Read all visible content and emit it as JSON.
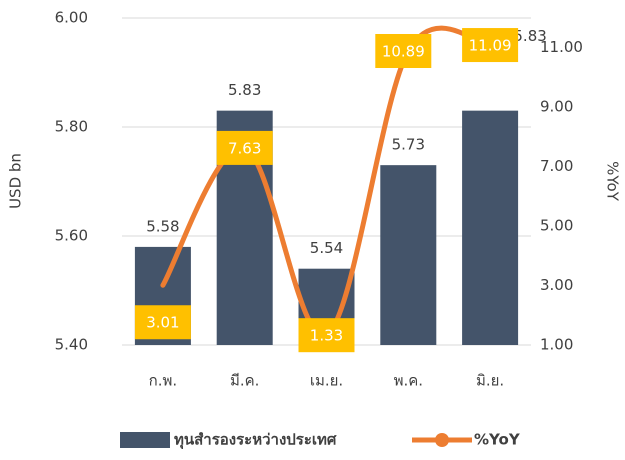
{
  "chart_data": {
    "type": "bar_line",
    "categories": [
      "ก.พ.",
      "มี.ค.",
      "เม.ย.",
      "พ.ค.",
      "มิ.ย."
    ],
    "series": [
      {
        "name": "ทุนสำรองระหว่างประเทศ",
        "type": "bar",
        "color": "#44546a",
        "values": [
          5.58,
          5.83,
          5.54,
          5.73,
          5.83
        ]
      },
      {
        "name": "%YoY",
        "type": "line",
        "axis": "y2",
        "color": "#ed7d31",
        "values": [
          3.01,
          7.63,
          1.33,
          10.89,
          11.09
        ]
      }
    ],
    "ylabel": "USD bn",
    "y2label": "%YoY",
    "ylim": [
      5.4,
      6.0
    ],
    "yticks": [
      {
        "value": 5.4,
        "label": "5.40"
      },
      {
        "value": 5.6,
        "label": "5.60"
      },
      {
        "value": 5.8,
        "label": "5.80"
      },
      {
        "value": 6.0,
        "label": "6.00"
      }
    ],
    "y2lim": [
      1,
      12
    ],
    "y2ticks": [
      {
        "value": 1,
        "label": "1.00"
      },
      {
        "value": 3,
        "label": "3.00"
      },
      {
        "value": 5,
        "label": "5.00"
      },
      {
        "value": 7,
        "label": "7.00"
      },
      {
        "value": 9,
        "label": "9.00"
      },
      {
        "value": 11,
        "label": "11.00"
      }
    ],
    "grid": true,
    "legend": "bottom"
  }
}
